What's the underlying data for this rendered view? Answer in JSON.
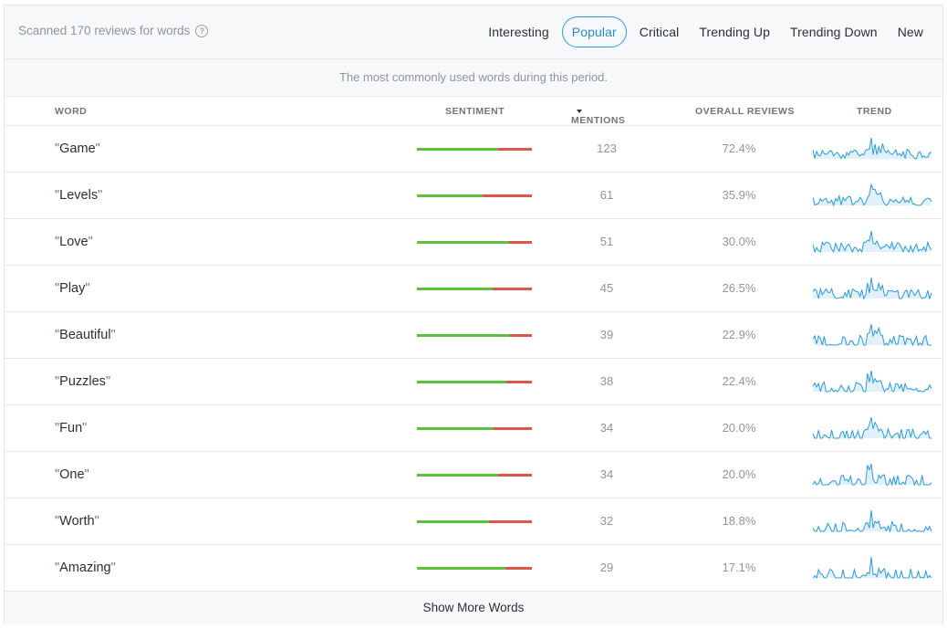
{
  "header": {
    "scanned_text": "Scanned 170 reviews for words",
    "tabs": [
      {
        "label": "Interesting",
        "active": false
      },
      {
        "label": "Popular",
        "active": true
      },
      {
        "label": "Critical",
        "active": false
      },
      {
        "label": "Trending Up",
        "active": false
      },
      {
        "label": "Trending Down",
        "active": false
      },
      {
        "label": "New",
        "active": false
      }
    ]
  },
  "subtitle": "The most commonly used words during this period.",
  "columns": {
    "word": "WORD",
    "sentiment": "SENTIMENT",
    "mentions": "MENTIONS",
    "overall": "OVERALL REVIEWS",
    "trend": "TREND"
  },
  "rows": [
    {
      "word": "Game",
      "positive": 0.71,
      "mentions": "123",
      "overall": "72.4%"
    },
    {
      "word": "Levels",
      "positive": 0.57,
      "mentions": "61",
      "overall": "35.9%"
    },
    {
      "word": "Love",
      "positive": 0.8,
      "mentions": "51",
      "overall": "30.0%"
    },
    {
      "word": "Play",
      "positive": 0.66,
      "mentions": "45",
      "overall": "26.5%"
    },
    {
      "word": "Beautiful",
      "positive": 0.81,
      "mentions": "39",
      "overall": "22.9%"
    },
    {
      "word": "Puzzles",
      "positive": 0.78,
      "mentions": "38",
      "overall": "22.4%"
    },
    {
      "word": "Fun",
      "positive": 0.67,
      "mentions": "34",
      "overall": "20.0%"
    },
    {
      "word": "One",
      "positive": 0.71,
      "mentions": "34",
      "overall": "20.0%"
    },
    {
      "word": "Worth",
      "positive": 0.63,
      "mentions": "32",
      "overall": "18.8%"
    },
    {
      "word": "Amazing",
      "positive": 0.77,
      "mentions": "29",
      "overall": "17.1%"
    }
  ],
  "show_more_label": "Show More Words",
  "colors": {
    "accent": "#2a9bde",
    "positive": "#5cc13a",
    "negative": "#e0554a",
    "trend_line": "#2a9bde",
    "trend_fill": "#cfe6f7"
  }
}
